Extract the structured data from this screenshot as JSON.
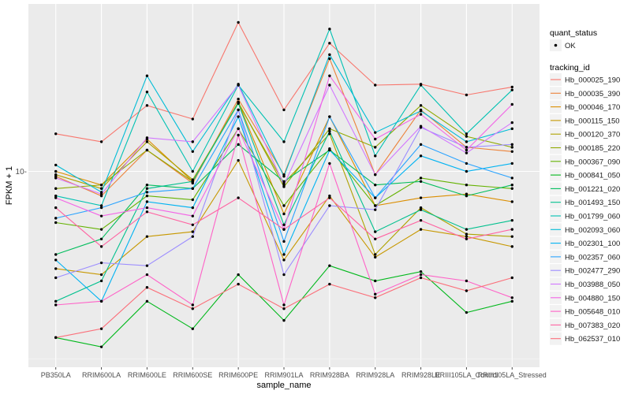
{
  "chart_data": {
    "type": "line",
    "title": "",
    "xlabel": "sample_name",
    "ylabel": "FPKM + 1",
    "y_scale": "log10",
    "ylim": [
      3.0,
      28.0
    ],
    "y_ticks": [
      10
    ],
    "y_tick_labels": [
      "10-"
    ],
    "grid": true,
    "legend_position": "right",
    "categories": [
      "PB350LA",
      "RRIM600LA",
      "RRIM600LE",
      "RRIM600SE",
      "RRIM600PE",
      "RRIM901LA",
      "RRIM928BA",
      "RRIM928LA",
      "RRIM928LE",
      "RRIII105LA_Control",
      "RRIII105LA_Stressed"
    ],
    "quant_legend": {
      "title": "quant_status",
      "items": [
        {
          "label": "OK"
        }
      ]
    },
    "series_legend_title": "tracking_id",
    "series": [
      {
        "name": "Hb_000025_190",
        "color": "#F8766D",
        "values": [
          12.6,
          12.0,
          15.0,
          13.8,
          25.0,
          14.6,
          22.0,
          17.0,
          17.1,
          16.0,
          16.8
        ]
      },
      {
        "name": "Hb_000035_390",
        "color": "#EC8239",
        "values": [
          9.7,
          8.6,
          11.4,
          9.3,
          15.6,
          9.8,
          20.0,
          9.8,
          14.6,
          11.6,
          11.3
        ]
      },
      {
        "name": "Hb_000046_170",
        "color": "#DB8E00",
        "values": [
          10.0,
          9.2,
          12.2,
          9.4,
          15.3,
          7.7,
          14.0,
          8.1,
          8.5,
          8.7,
          8.3
        ]
      },
      {
        "name": "Hb_000115_150",
        "color": "#C79800",
        "values": [
          5.5,
          5.3,
          6.7,
          6.9,
          10.7,
          5.8,
          8.6,
          5.9,
          7.0,
          6.7,
          6.3
        ]
      },
      {
        "name": "Hb_000120_370",
        "color": "#AEA200",
        "values": [
          9.8,
          9.0,
          12.0,
          9.5,
          15.2,
          9.3,
          12.6,
          6.0,
          8.0,
          6.8,
          6.7
        ]
      },
      {
        "name": "Hb_000185_220",
        "color": "#8FAA00",
        "values": [
          9.0,
          9.2,
          11.4,
          9.4,
          15.3,
          9.1,
          13.0,
          11.6,
          15.0,
          12.4,
          11.6
        ]
      },
      {
        "name": "Hb_000367_090",
        "color": "#64B200",
        "values": [
          7.3,
          7.0,
          8.6,
          8.4,
          13.0,
          8.1,
          11.5,
          8.1,
          9.6,
          9.2,
          9.0
        ]
      },
      {
        "name": "Hb_000841_050",
        "color": "#00B81B",
        "values": [
          3.6,
          3.4,
          4.5,
          3.8,
          5.3,
          4.0,
          5.6,
          5.1,
          5.4,
          4.2,
          4.5
        ]
      },
      {
        "name": "Hb_001221_020",
        "color": "#00BD5C",
        "values": [
          6.0,
          6.6,
          9.2,
          9.0,
          11.8,
          9.4,
          11.4,
          9.2,
          9.4,
          8.6,
          9.2
        ]
      },
      {
        "name": "Hb_001493_150",
        "color": "#00C08E",
        "values": [
          4.5,
          5.1,
          9.0,
          9.4,
          15.2,
          7.2,
          12.8,
          6.9,
          7.9,
          7.0,
          7.4
        ]
      },
      {
        "name": "Hb_001799_060",
        "color": "#00C1B2",
        "values": [
          8.6,
          8.1,
          16.3,
          10.0,
          17.0,
          12.0,
          24.0,
          11.0,
          17.0,
          12.6,
          16.5
        ]
      },
      {
        "name": "Hb_002093_060",
        "color": "#00BCD6",
        "values": [
          10.4,
          8.8,
          18.0,
          11.3,
          17.1,
          9.7,
          20.5,
          12.7,
          14.5,
          12.0,
          13.0
        ]
      },
      {
        "name": "Hb_002301_100",
        "color": "#00B3F2",
        "values": [
          5.8,
          4.5,
          8.3,
          8.0,
          14.0,
          6.0,
          11.4,
          8.5,
          11.0,
          10.0,
          10.5
        ]
      },
      {
        "name": "Hb_002357_060",
        "color": "#29A3FF",
        "values": [
          7.5,
          8.0,
          8.8,
          9.0,
          14.6,
          6.5,
          14.0,
          8.5,
          11.8,
          10.5,
          9.6
        ]
      },
      {
        "name": "Hb_002477_290",
        "color": "#9C8DFF",
        "values": [
          5.2,
          5.7,
          5.6,
          6.7,
          14.6,
          5.3,
          8.1,
          7.9,
          13.1,
          11.6,
          11.8
        ]
      },
      {
        "name": "Hb_003988_050",
        "color": "#D277FF",
        "values": [
          9.6,
          8.7,
          12.3,
          12.0,
          17.0,
          9.2,
          17.0,
          9.8,
          13.2,
          11.2,
          13.5
        ]
      },
      {
        "name": "Hb_004880_150",
        "color": "#F365E6",
        "values": [
          8.5,
          7.6,
          8.0,
          7.6,
          13.0,
          7.0,
          18.0,
          12.2,
          14.2,
          11.4,
          15.1
        ]
      },
      {
        "name": "Hb_005648_010",
        "color": "#FF61C7",
        "values": [
          4.4,
          4.5,
          5.3,
          4.4,
          12.5,
          4.4,
          10.5,
          4.7,
          5.3,
          5.1,
          4.6
        ]
      },
      {
        "name": "Hb_007383_020",
        "color": "#FF63A2",
        "values": [
          8.0,
          6.3,
          7.8,
          7.2,
          8.5,
          7.0,
          8.5,
          6.6,
          7.4,
          6.6,
          7.0
        ]
      },
      {
        "name": "Hb_062537_010",
        "color": "#FB6F7A",
        "values": [
          3.6,
          3.8,
          4.9,
          4.3,
          5.0,
          4.3,
          5.0,
          4.6,
          5.2,
          4.8,
          5.2
        ]
      }
    ]
  }
}
